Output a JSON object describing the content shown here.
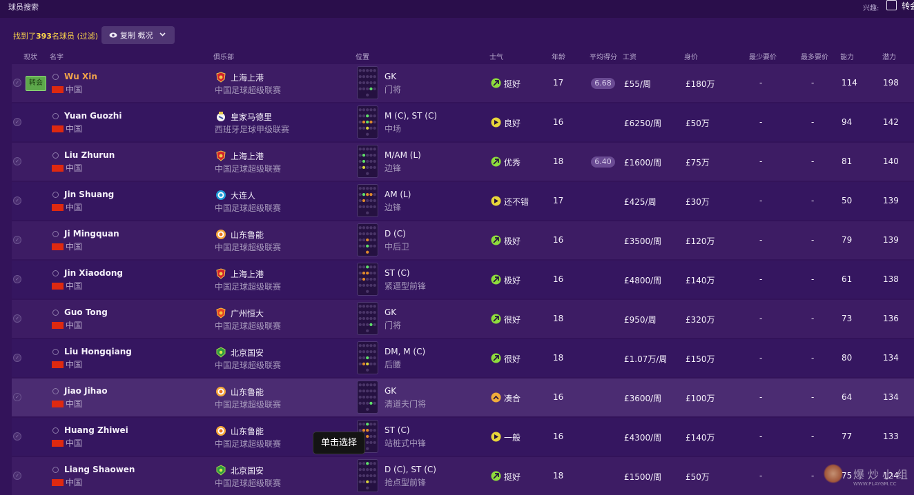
{
  "window": {
    "title": "球员搜索"
  },
  "topbar": {
    "interest_label": "兴趣:",
    "transfer_checkbox_label": "转会"
  },
  "summary": {
    "prefix": "找到了",
    "count": "393",
    "suffix": "名球员 (",
    "filter_link": "过滤",
    "close": ")"
  },
  "copy_button": {
    "label": "复制 概况",
    "icon": "eye-icon"
  },
  "columns": [
    "现状",
    "名字",
    "俱乐部",
    "位置",
    "士气",
    "年龄",
    "平均得分",
    "工资",
    "身价",
    "最少要价",
    "最多要价",
    "能力",
    "潜力"
  ],
  "colors": {
    "accent_star": "#f0a24a",
    "summary_text": "#ffd84a",
    "morale_good": "#8edc3c",
    "morale_ok": "#e7d53a",
    "morale_fair": "#f1ad3a"
  },
  "players": [
    {
      "name": "Wu Xin",
      "nationality": "中国",
      "club": "上海上港",
      "crest": "sipg",
      "league": "中国足球超级联赛",
      "position": "GK",
      "role": "门将",
      "morale": "挺好",
      "morale_level": "good",
      "age": "17",
      "avg": "6.68",
      "wage": "£55/周",
      "value": "£180万",
      "min_ask": "-",
      "max_ask": "-",
      "ability": "114",
      "potential": "198",
      "badge": "转会",
      "star": true
    },
    {
      "name": "Yuan Guozhi",
      "nationality": "中国",
      "club": "皇家马德里",
      "crest": "realmadrid",
      "league": "西班牙足球甲级联赛",
      "position": "M (C), ST (C)",
      "role": "中场",
      "morale": "良好",
      "morale_level": "ok",
      "age": "16",
      "avg": "",
      "wage": "£6250/周",
      "value": "£50万",
      "min_ask": "-",
      "max_ask": "-",
      "ability": "94",
      "potential": "142"
    },
    {
      "name": "Liu Zhurun",
      "nationality": "中国",
      "club": "上海上港",
      "crest": "sipg",
      "league": "中国足球超级联赛",
      "position": "M/AM (L)",
      "role": "边锋",
      "morale": "优秀",
      "morale_level": "good",
      "age": "18",
      "avg": "6.40",
      "wage": "£1600/周",
      "value": "£75万",
      "min_ask": "-",
      "max_ask": "-",
      "ability": "81",
      "potential": "140"
    },
    {
      "name": "Jin Shuang",
      "nationality": "中国",
      "club": "大连人",
      "crest": "dalian",
      "league": "中国足球超级联赛",
      "position": "AM (L)",
      "role": "边锋",
      "morale": "还不错",
      "morale_level": "ok",
      "age": "17",
      "avg": "",
      "wage": "£425/周",
      "value": "£30万",
      "min_ask": "-",
      "max_ask": "-",
      "ability": "50",
      "potential": "139"
    },
    {
      "name": "Ji Mingquan",
      "nationality": "中国",
      "club": "山东鲁能",
      "crest": "shandong",
      "league": "中国足球超级联赛",
      "position": "D (C)",
      "role": "中后卫",
      "morale": "极好",
      "morale_level": "good",
      "age": "16",
      "avg": "",
      "wage": "£3500/周",
      "value": "£120万",
      "min_ask": "-",
      "max_ask": "-",
      "ability": "79",
      "potential": "139"
    },
    {
      "name": "Jin Xiaodong",
      "nationality": "中国",
      "club": "上海上港",
      "crest": "sipg",
      "league": "中国足球超级联赛",
      "position": "ST (C)",
      "role": "紧逼型前锋",
      "morale": "极好",
      "morale_level": "good",
      "age": "16",
      "avg": "",
      "wage": "£4800/周",
      "value": "£140万",
      "min_ask": "-",
      "max_ask": "-",
      "ability": "61",
      "potential": "138"
    },
    {
      "name": "Guo Tong",
      "nationality": "中国",
      "club": "广州恒大",
      "crest": "evergrande",
      "league": "中国足球超级联赛",
      "position": "GK",
      "role": "门将",
      "morale": "很好",
      "morale_level": "good",
      "age": "18",
      "avg": "",
      "wage": "£950/周",
      "value": "£320万",
      "min_ask": "-",
      "max_ask": "-",
      "ability": "73",
      "potential": "136"
    },
    {
      "name": "Liu Hongqiang",
      "nationality": "中国",
      "club": "北京国安",
      "crest": "guoan",
      "league": "中国足球超级联赛",
      "position": "DM, M (C)",
      "role": "后腰",
      "morale": "很好",
      "morale_level": "good",
      "age": "18",
      "avg": "",
      "wage": "£1.07万/周",
      "value": "£150万",
      "min_ask": "-",
      "max_ask": "-",
      "ability": "80",
      "potential": "134"
    },
    {
      "name": "Jiao Jihao",
      "nationality": "中国",
      "club": "山东鲁能",
      "crest": "shandong",
      "league": "中国足球超级联赛",
      "position": "GK",
      "role": "清道夫门将",
      "morale": "凑合",
      "morale_level": "fair",
      "age": "16",
      "avg": "",
      "wage": "£3600/周",
      "value": "£100万",
      "min_ask": "-",
      "max_ask": "-",
      "ability": "64",
      "potential": "134",
      "selected": true
    },
    {
      "name": "Huang Zhiwei",
      "nationality": "中国",
      "club": "山东鲁能",
      "crest": "shandong",
      "league": "中国足球超级联赛",
      "position": "ST (C)",
      "role": "站桩式中锋",
      "morale": "一般",
      "morale_level": "ok",
      "age": "16",
      "avg": "",
      "wage": "£4300/周",
      "value": "£140万",
      "min_ask": "-",
      "max_ask": "-",
      "ability": "77",
      "potential": "133"
    },
    {
      "name": "Liang Shaowen",
      "nationality": "中国",
      "club": "北京国安",
      "crest": "guoan",
      "league": "中国足球超级联赛",
      "position": "D (C), ST (C)",
      "role": "抢点型前锋",
      "morale": "挺好",
      "morale_level": "good",
      "age": "18",
      "avg": "",
      "wage": "£1500/周",
      "value": "£50万",
      "min_ask": "-",
      "max_ask": "-",
      "ability": "75",
      "potential": "124"
    }
  ],
  "tooltip": {
    "text": "单击选择"
  },
  "watermark": {
    "text": "爆炒小组",
    "url": "WWW.PLAYGM.CC"
  }
}
